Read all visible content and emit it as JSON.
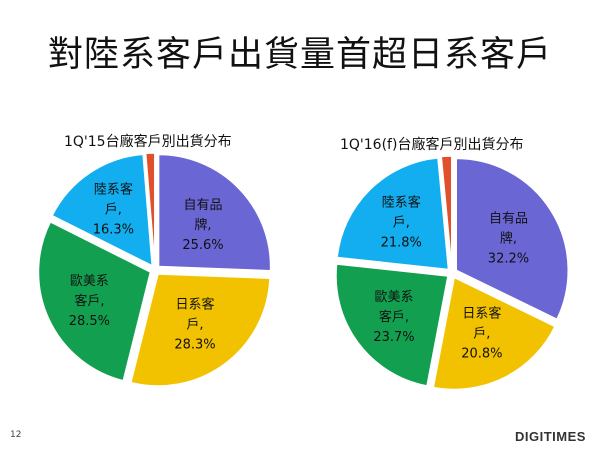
{
  "slide": {
    "title": "對陸系客戶出貨量首超日系客戶",
    "page_number": "12",
    "logo": "DIGITIMES"
  },
  "chart_data": [
    {
      "type": "pie",
      "title": "1Q'15台廠客戶別出貨分布",
      "slices": [
        {
          "label_lines": [
            "自有品",
            "牌,",
            "25.6%"
          ],
          "value": 25.6,
          "color": "#6A66D4"
        },
        {
          "label_lines": [
            "日系客",
            "戶,",
            "28.3%"
          ],
          "value": 28.3,
          "color": "#F2C200"
        },
        {
          "label_lines": [
            "歐美系",
            "客戶,",
            "28.5%"
          ],
          "value": 28.5,
          "color": "#12A050"
        },
        {
          "label_lines": [
            "陸系客",
            "戶,",
            "16.3%"
          ],
          "value": 16.3,
          "color": "#12AEEF"
        },
        {
          "label_lines": [],
          "value": 1.3,
          "color": "#E0502A"
        }
      ]
    },
    {
      "type": "pie",
      "title": "1Q'16(f)台廠客戶別出貨分布",
      "slices": [
        {
          "label_lines": [
            "自有品",
            "牌,",
            "32.2%"
          ],
          "value": 32.2,
          "color": "#6A66D4"
        },
        {
          "label_lines": [
            "日系客",
            "戶,",
            "20.8%"
          ],
          "value": 20.8,
          "color": "#F2C200"
        },
        {
          "label_lines": [
            "歐美系",
            "客戶,",
            "23.7%"
          ],
          "value": 23.7,
          "color": "#12A050"
        },
        {
          "label_lines": [
            "陸系客",
            "戶,",
            "21.8%"
          ],
          "value": 21.8,
          "color": "#12AEEF"
        },
        {
          "label_lines": [],
          "value": 1.5,
          "color": "#E0502A"
        }
      ]
    }
  ]
}
